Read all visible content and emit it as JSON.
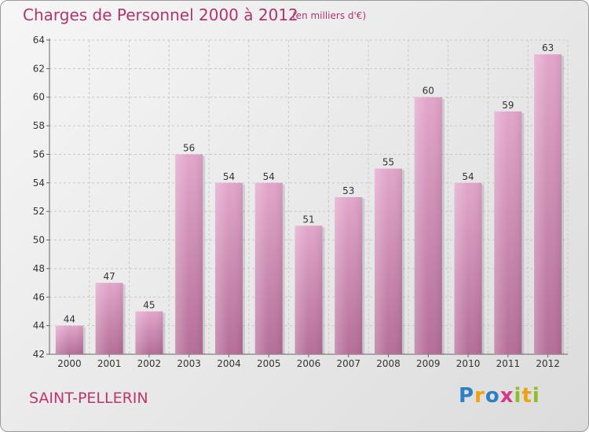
{
  "header": {
    "title": "Charges de Personnel 2000 à 2012",
    "subtitle": "(en milliers d'€)"
  },
  "footer": {
    "commune": "SAINT-PELLERIN",
    "logo_text": "Proxiti",
    "logo_letters": [
      {
        "ch": "P",
        "color": "#2e7fc4"
      },
      {
        "ch": "r",
        "color": "#f0a010"
      },
      {
        "ch": "o",
        "color": "#2e7fc4"
      },
      {
        "ch": "x",
        "color": "#d23a8a"
      },
      {
        "ch": "i",
        "color": "#8cbf2a"
      },
      {
        "ch": "t",
        "color": "#f0a010"
      },
      {
        "ch": "i",
        "color": "#8cbf2a"
      }
    ]
  },
  "chart_data": {
    "type": "bar",
    "categories": [
      "2000",
      "2001",
      "2002",
      "2003",
      "2004",
      "2005",
      "2006",
      "2007",
      "2008",
      "2009",
      "2010",
      "2011",
      "2012"
    ],
    "values": [
      44,
      47,
      45,
      56,
      54,
      54,
      51,
      53,
      55,
      60,
      54,
      59,
      63
    ],
    "ylim": [
      42,
      64
    ],
    "yticks": [
      42,
      44,
      46,
      48,
      50,
      52,
      54,
      56,
      58,
      60,
      62,
      64
    ],
    "grid": true,
    "bar_color": "#d98fba",
    "title": "Charges de Personnel 2000 à 2012",
    "xlabel": "",
    "ylabel": ""
  }
}
